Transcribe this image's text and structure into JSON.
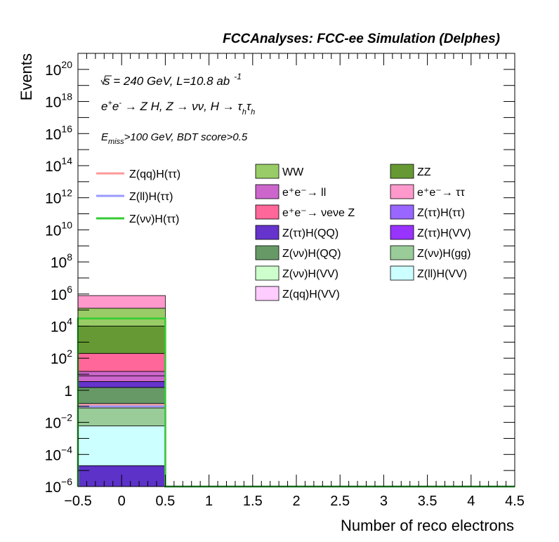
{
  "chart_data": {
    "type": "bar",
    "title": "FCCAnalyses: FCC-ee Simulation (Delphes)",
    "xlabel": "Number of reco electrons",
    "ylabel": "Events",
    "xlim": [
      -0.5,
      4.5
    ],
    "ylim": [
      1e-06,
      1e+21
    ],
    "yscale": "log",
    "grid": false,
    "legend_position": "top",
    "x_ticks": [
      {
        "value": -0.5,
        "label": "−0.5"
      },
      {
        "value": 0,
        "label": "0"
      },
      {
        "value": 0.5,
        "label": "0.5"
      },
      {
        "value": 1,
        "label": "1"
      },
      {
        "value": 1.5,
        "label": "1.5"
      },
      {
        "value": 2,
        "label": "2"
      },
      {
        "value": 2.5,
        "label": "2.5"
      },
      {
        "value": 3,
        "label": "3"
      },
      {
        "value": 3.5,
        "label": "3.5"
      },
      {
        "value": 4,
        "label": "4"
      },
      {
        "value": 4.5,
        "label": "4.5"
      }
    ],
    "y_ticks": [
      {
        "exp": -6,
        "base": "10",
        "sup": "−6"
      },
      {
        "exp": -4,
        "base": "10",
        "sup": "−4"
      },
      {
        "exp": -2,
        "base": "10",
        "sup": "−2"
      },
      {
        "exp": 0,
        "base": "1",
        "sup": ""
      },
      {
        "exp": 2,
        "base": "10",
        "sup": "2"
      },
      {
        "exp": 4,
        "base": "10",
        "sup": "4"
      },
      {
        "exp": 6,
        "base": "10",
        "sup": "6"
      },
      {
        "exp": 8,
        "base": "10",
        "sup": "8"
      },
      {
        "exp": 10,
        "base": "10",
        "sup": "10"
      },
      {
        "exp": 12,
        "base": "10",
        "sup": "12"
      },
      {
        "exp": 14,
        "base": "10",
        "sup": "14"
      },
      {
        "exp": 16,
        "base": "10",
        "sup": "16"
      },
      {
        "exp": 18,
        "base": "10",
        "sup": "18"
      },
      {
        "exp": 20,
        "base": "10",
        "sup": "20"
      }
    ],
    "annotations": {
      "energy_line": "√s = 240 GeV, L=10.8 ab⁻¹",
      "process_line": "e⁺e⁻ → Z H, Z → νν, H → τhτh",
      "cut_line": "Emiss>100 GeV, BDT score>0.5"
    },
    "stack_bin": [
      -0.5,
      0.5
    ],
    "stack_bands": [
      {
        "name": "Z(νν)H(VV)",
        "color": "#3333cc",
        "lo": 1e-06,
        "hi": 2e-05,
        "fill": "#5c32c8"
      },
      {
        "name": "Z(ll)H(VV)",
        "color": "#ccffff",
        "lo": 2e-05,
        "hi": 0.006,
        "fill": "#ccffff"
      },
      {
        "name": "Z(νν)H(gg)",
        "color": "#99cc99",
        "lo": 0.006,
        "hi": 0.08,
        "fill": "#99cc99"
      },
      {
        "name": "Z(ττ)H(VV)",
        "color": "#e6e6ff",
        "lo": 0.08,
        "hi": 0.15,
        "fill": "#e6d9f2"
      },
      {
        "name": "Z(νν)H(QQ)",
        "color": "#669966",
        "lo": 0.15,
        "hi": 1.5,
        "fill": "#669966"
      },
      {
        "name": "Z(ττ)H(QQ)",
        "color": "#6633cc",
        "lo": 1.5,
        "hi": 3.5,
        "fill": "#6633cc"
      },
      {
        "name": "Z(ττ)H(ττ)",
        "color": "#cc66cc",
        "lo": 3.5,
        "hi": 8,
        "fill": "#cc66cc"
      },
      {
        "name": "e⁺e⁻ → ll",
        "color": "#cc66cc",
        "lo": 8,
        "hi": 15,
        "fill": "#cc66cc"
      },
      {
        "name": "e⁺e⁻ → νeνe Z",
        "color": "#ff6699",
        "lo": 15,
        "hi": 200,
        "fill": "#ff6699"
      },
      {
        "name": "ZZ",
        "color": "#669933",
        "lo": 200,
        "hi": 10000,
        "fill": "#669933"
      },
      {
        "name": "WW",
        "color": "#99cc66",
        "lo": 10000,
        "hi": 130000,
        "fill": "#99cc66"
      },
      {
        "name": "e⁺e⁻ → ττ",
        "color": "#ff99cc",
        "lo": 130000,
        "hi": 800000,
        "fill": "#ff99cc"
      }
    ],
    "series": [
      {
        "name": "Z(qq)H(ττ)",
        "color": "#ff9999",
        "bins": [
          {
            "x": [
              -0.5,
              0.5
            ],
            "y": 0.12
          },
          {
            "x": [
              0.5,
              4.5
            ],
            "y": 1e-06
          }
        ]
      },
      {
        "name": "Z(ll)H(ττ)",
        "color": "#9999ff",
        "bins": [
          {
            "x": [
              -0.5,
              0.5
            ],
            "y": 0.1
          },
          {
            "x": [
              0.5,
              4.5
            ],
            "y": 1e-06
          }
        ]
      },
      {
        "name": "Z(νν)H(ττ)",
        "color": "#33cc33",
        "bins": [
          {
            "x": [
              -0.5,
              0.5
            ],
            "y": 30000
          },
          {
            "x": [
              0.5,
              4.5
            ],
            "y": 1e-06
          }
        ]
      }
    ],
    "legend_lines": [
      {
        "label": "Z(qq)H(ττ)",
        "color": "#ff9999"
      },
      {
        "label": "Z(ll)H(ττ)",
        "color": "#9999ff"
      },
      {
        "label": "Z(νν)H(ττ)",
        "color": "#33cc33"
      }
    ],
    "legend_boxes_col1": [
      {
        "label": "WW",
        "color": "#99cc66"
      },
      {
        "label": "e⁺e⁻→ ll",
        "color": "#cc66cc"
      },
      {
        "label": "e⁺e⁻→ νeνe Z",
        "color": "#ff6699"
      },
      {
        "label": "Z(ττ)H(QQ)",
        "color": "#6633cc"
      },
      {
        "label": "Z(νν)H(QQ)",
        "color": "#669966"
      },
      {
        "label": "Z(νν)H(VV)",
        "color": "#ccffcc"
      },
      {
        "label": "Z(qq)H(VV)",
        "color": "#ffccff"
      }
    ],
    "legend_boxes_col2": [
      {
        "label": "ZZ",
        "color": "#669933"
      },
      {
        "label": "e⁺e⁻→ ττ",
        "color": "#ff99cc"
      },
      {
        "label": "Z(ττ)H(ττ)",
        "color": "#9966ff"
      },
      {
        "label": "Z(ττ)H(VV)",
        "color": "#9933ff"
      },
      {
        "label": "Z(νν)H(gg)",
        "color": "#99cc99"
      },
      {
        "label": "Z(ll)H(VV)",
        "color": "#ccffff"
      }
    ]
  }
}
